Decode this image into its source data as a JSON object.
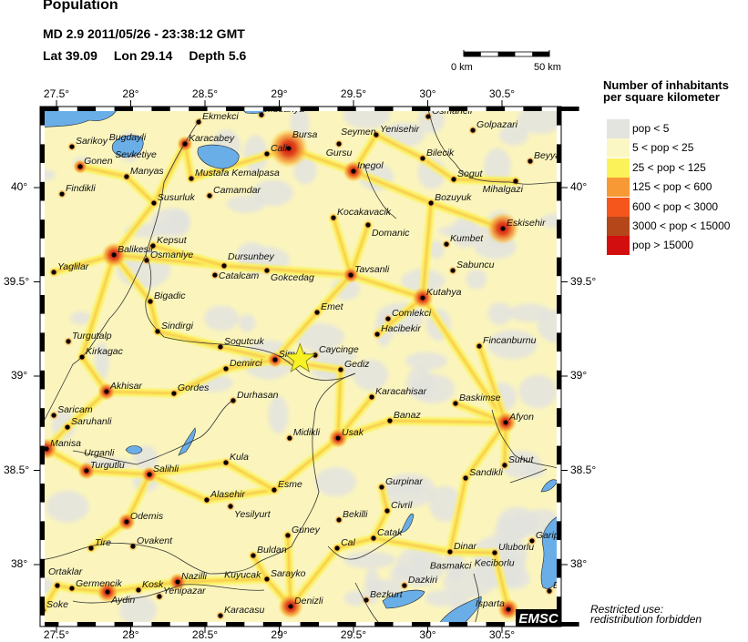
{
  "header": {
    "title": "Population",
    "event_line": "MD 2.9  2011/05/26 - 23:38:12 GMT",
    "lat_label": "Lat 39.09",
    "lon_label": "Lon  29.14",
    "depth_label": "Depth  5.6"
  },
  "scale_bar": {
    "start_label": "0 km",
    "end_label": "50 km"
  },
  "axes": {
    "lon_ticks": [
      "27.5°",
      "28°",
      "28.5°",
      "29°",
      "29.5°",
      "30°",
      "30.5°"
    ],
    "lon_values": [
      27.5,
      28,
      28.5,
      29,
      29.5,
      30,
      30.5
    ],
    "lat_ticks": [
      "40°",
      "39.5°",
      "39°",
      "38.5°",
      "38°"
    ],
    "lat_values": [
      40,
      39.5,
      39,
      38.5,
      38
    ],
    "lon_range": [
      27.39,
      30.9
    ],
    "lat_range": [
      37.67,
      40.43
    ]
  },
  "legend": {
    "title_line1": "Number of inhabitants",
    "title_line2": "per square kilometer",
    "items": [
      {
        "label": "pop < 5",
        "color": "#e3e3df"
      },
      {
        "label": "5 < pop < 25",
        "color": "#fbf7c4"
      },
      {
        "label": "25 < pop < 125",
        "color": "#fbf25a"
      },
      {
        "label": "125 < pop < 600",
        "color": "#f79a35"
      },
      {
        "label": "600 < pop < 3000",
        "color": "#f4561c"
      },
      {
        "label": "3000 < pop < 15000",
        "color": "#b4461a"
      },
      {
        "label": "pop > 15000",
        "color": "#d30e0e"
      }
    ]
  },
  "epicenter": {
    "lat": 39.09,
    "lon": 29.14,
    "color": "#f8f224"
  },
  "colors": {
    "water": "#6aaee8",
    "border": "#333333"
  },
  "cities": [
    {
      "name": "Ekmekci",
      "lon": 28.457,
      "lat": 40.348
    },
    {
      "name": "Mudanya",
      "lon": 28.88,
      "lat": 40.386
    },
    {
      "name": "Karacabey",
      "lon": 28.365,
      "lat": 40.232
    },
    {
      "name": "Sarikoy",
      "lon": 27.604,
      "lat": 40.217
    },
    {
      "name": "Bugdayli",
      "lon": 27.83,
      "lat": 40.237,
      "nodot": true
    },
    {
      "name": "Gonen",
      "lon": 27.66,
      "lat": 40.111
    },
    {
      "name": "Sevketiye",
      "lon": 27.87,
      "lat": 40.145,
      "nodot": true
    },
    {
      "name": "Manyas",
      "lon": 27.972,
      "lat": 40.058
    },
    {
      "name": "Mustafa Kemalpasa",
      "lon": 28.408,
      "lat": 40.048
    },
    {
      "name": "Findikli",
      "lon": 27.537,
      "lat": 39.966
    },
    {
      "name": "Camamdar",
      "lon": 28.531,
      "lat": 39.957
    },
    {
      "name": "Susurluk",
      "lon": 28.156,
      "lat": 39.918
    },
    {
      "name": "Kepsut",
      "lon": 28.15,
      "lat": 39.691
    },
    {
      "name": "Balikesir",
      "lon": 27.887,
      "lat": 39.643
    },
    {
      "name": "Osmaniye",
      "lon": 28.107,
      "lat": 39.614
    },
    {
      "name": "Yaglilar",
      "lon": 27.482,
      "lat": 39.551
    },
    {
      "name": "Dursunbey",
      "lon": 28.629,
      "lat": 39.585
    },
    {
      "name": "Catalcam",
      "lon": 28.567,
      "lat": 39.536
    },
    {
      "name": "Gokcedag",
      "lon": 28.917,
      "lat": 39.56
    },
    {
      "name": "Cali",
      "lon": 28.917,
      "lat": 40.179
    },
    {
      "name": "Bursa",
      "lon": 29.064,
      "lat": 40.208
    },
    {
      "name": "Osmaneli",
      "lon": 30.003,
      "lat": 40.377
    },
    {
      "name": "Golpazari",
      "lon": 30.304,
      "lat": 40.304
    },
    {
      "name": "Yenisehir",
      "lon": 29.653,
      "lat": 40.28
    },
    {
      "name": "Seymen",
      "lon": 29.39,
      "lat": 40.255,
      "nodot": true
    },
    {
      "name": "Gursu",
      "lon": 29.402,
      "lat": 40.232,
      "left": true
    },
    {
      "name": "Bilecik",
      "lon": 29.966,
      "lat": 40.155
    },
    {
      "name": "Beyya",
      "lon": 30.69,
      "lat": 40.14
    },
    {
      "name": "Inegol",
      "lon": 29.5,
      "lat": 40.087
    },
    {
      "name": "Sogut",
      "lon": 30.175,
      "lat": 40.044
    },
    {
      "name": "Mihalgazi",
      "lon": 30.592,
      "lat": 40.034,
      "left": true
    },
    {
      "name": "Bozuyuk",
      "lon": 30.022,
      "lat": 39.918
    },
    {
      "name": "Kocakavacik",
      "lon": 29.365,
      "lat": 39.84
    },
    {
      "name": "Domanic",
      "lon": 29.598,
      "lat": 39.802
    },
    {
      "name": "Eskisehir",
      "lon": 30.506,
      "lat": 39.783
    },
    {
      "name": "Kumbet",
      "lon": 30.126,
      "lat": 39.7
    },
    {
      "name": "Sabuncu",
      "lon": 30.169,
      "lat": 39.56
    },
    {
      "name": "Tavsanli",
      "lon": 29.482,
      "lat": 39.536
    },
    {
      "name": "Bigadic",
      "lon": 28.132,
      "lat": 39.396
    },
    {
      "name": "Sindirgi",
      "lon": 28.181,
      "lat": 39.237
    },
    {
      "name": "Turgutalp",
      "lon": 27.58,
      "lat": 39.184
    },
    {
      "name": "Sogutcuk",
      "lon": 28.604,
      "lat": 39.155
    },
    {
      "name": "Kirkagac",
      "lon": 27.672,
      "lat": 39.101
    },
    {
      "name": "Simav",
      "lon": 28.972,
      "lat": 39.087
    },
    {
      "name": "Demirci",
      "lon": 28.641,
      "lat": 39.039
    },
    {
      "name": "Akhisar",
      "lon": 27.837,
      "lat": 38.918
    },
    {
      "name": "Gordes",
      "lon": 28.291,
      "lat": 38.908
    },
    {
      "name": "Durhasan",
      "lon": 28.69,
      "lat": 38.87
    },
    {
      "name": "Saricam",
      "lon": 27.482,
      "lat": 38.792
    },
    {
      "name": "Saruhanli",
      "lon": 27.574,
      "lat": 38.729
    },
    {
      "name": "Midikli",
      "lon": 29.07,
      "lat": 38.671
    },
    {
      "name": "Manisa",
      "lon": 27.433,
      "lat": 38.614
    },
    {
      "name": "Kutahya",
      "lon": 29.966,
      "lat": 39.415
    },
    {
      "name": "Emet",
      "lon": 29.255,
      "lat": 39.338
    },
    {
      "name": "Comlekci",
      "lon": 29.733,
      "lat": 39.304
    },
    {
      "name": "Hacibekir",
      "lon": 29.66,
      "lat": 39.222
    },
    {
      "name": "Fincanburnu",
      "lon": 30.347,
      "lat": 39.159
    },
    {
      "name": "Caycinge",
      "lon": 29.242,
      "lat": 39.111
    },
    {
      "name": "Gediz",
      "lon": 29.414,
      "lat": 39.034
    },
    {
      "name": "Karacahisar",
      "lon": 29.623,
      "lat": 38.889
    },
    {
      "name": "Baskimse",
      "lon": 30.187,
      "lat": 38.855
    },
    {
      "name": "Banaz",
      "lon": 29.745,
      "lat": 38.763
    },
    {
      "name": "Afyon",
      "lon": 30.525,
      "lat": 38.754
    },
    {
      "name": "Usak",
      "lon": 29.396,
      "lat": 38.671
    },
    {
      "name": "Kula",
      "lon": 28.641,
      "lat": 38.541
    },
    {
      "name": "Urganli",
      "lon": 27.66,
      "lat": 38.52,
      "nodot": true
    },
    {
      "name": "Turgutlu",
      "lon": 27.702,
      "lat": 38.498
    },
    {
      "name": "Salihli",
      "lon": 28.126,
      "lat": 38.478
    },
    {
      "name": "Esme",
      "lon": 28.966,
      "lat": 38.396
    },
    {
      "name": "Alasehir",
      "lon": 28.512,
      "lat": 38.343
    },
    {
      "name": "Yesilyurt",
      "lon": 28.672,
      "lat": 38.309
    },
    {
      "name": "Odemis",
      "lon": 27.972,
      "lat": 38.227
    },
    {
      "name": "Guney",
      "lon": 29.058,
      "lat": 38.155
    },
    {
      "name": "Tire",
      "lon": 27.733,
      "lat": 38.087
    },
    {
      "name": "Ovakent",
      "lon": 28.015,
      "lat": 38.097
    },
    {
      "name": "Buldan",
      "lon": 28.825,
      "lat": 38.048
    },
    {
      "name": "Sarayko",
      "lon": 28.917,
      "lat": 37.923
    },
    {
      "name": "Nazilli",
      "lon": 28.316,
      "lat": 37.908
    },
    {
      "name": "Kuyucak",
      "lon": 28.47,
      "lat": 37.915,
      "nodot": true
    },
    {
      "name": "Ortaklar",
      "lon": 27.506,
      "lat": 37.889
    },
    {
      "name": "Germencik",
      "lon": 27.604,
      "lat": 37.874
    },
    {
      "name": "Aydin",
      "lon": 27.844,
      "lat": 37.855
    },
    {
      "name": "Kosk",
      "lon": 28.052,
      "lat": 37.865
    },
    {
      "name": "Yenipazar",
      "lon": 28.193,
      "lat": 37.831
    },
    {
      "name": "Denizli",
      "lon": 29.077,
      "lat": 37.778
    },
    {
      "name": "Soke",
      "lon": 27.408,
      "lat": 37.758
    },
    {
      "name": "Karacasu",
      "lon": 28.604,
      "lat": 37.729
    },
    {
      "name": "Suhut",
      "lon": 30.518,
      "lat": 38.527
    },
    {
      "name": "Sandikli",
      "lon": 30.255,
      "lat": 38.459
    },
    {
      "name": "Gurpinar",
      "lon": 29.69,
      "lat": 38.411
    },
    {
      "name": "Civril",
      "lon": 29.727,
      "lat": 38.285
    },
    {
      "name": "Bekilli",
      "lon": 29.402,
      "lat": 38.237
    },
    {
      "name": "Catak",
      "lon": 29.635,
      "lat": 38.14
    },
    {
      "name": "Garip",
      "lon": 30.702,
      "lat": 38.126
    },
    {
      "name": "Cal",
      "lon": 29.39,
      "lat": 38.087
    },
    {
      "name": "Dinar",
      "lon": 30.15,
      "lat": 38.068
    },
    {
      "name": "Uluborlu",
      "lon": 30.451,
      "lat": 38.063
    },
    {
      "name": "Keciborlu",
      "lon": 30.29,
      "lat": 37.95,
      "nodot": true
    },
    {
      "name": "Basmakci",
      "lon": 29.99,
      "lat": 37.925,
      "nodot": true
    },
    {
      "name": "Dazkiri",
      "lon": 29.843,
      "lat": 37.889
    },
    {
      "name": "Eg",
      "lon": 30.819,
      "lat": 37.86
    },
    {
      "name": "Bezkurt",
      "lon": 29.586,
      "lat": 37.812
    },
    {
      "name": "Isparta",
      "lon": 30.543,
      "lat": 37.763,
      "left": true
    }
  ],
  "logo": "EMSC",
  "notice": {
    "line1": "Restricted use:",
    "line2": "redistribution forbidden"
  }
}
